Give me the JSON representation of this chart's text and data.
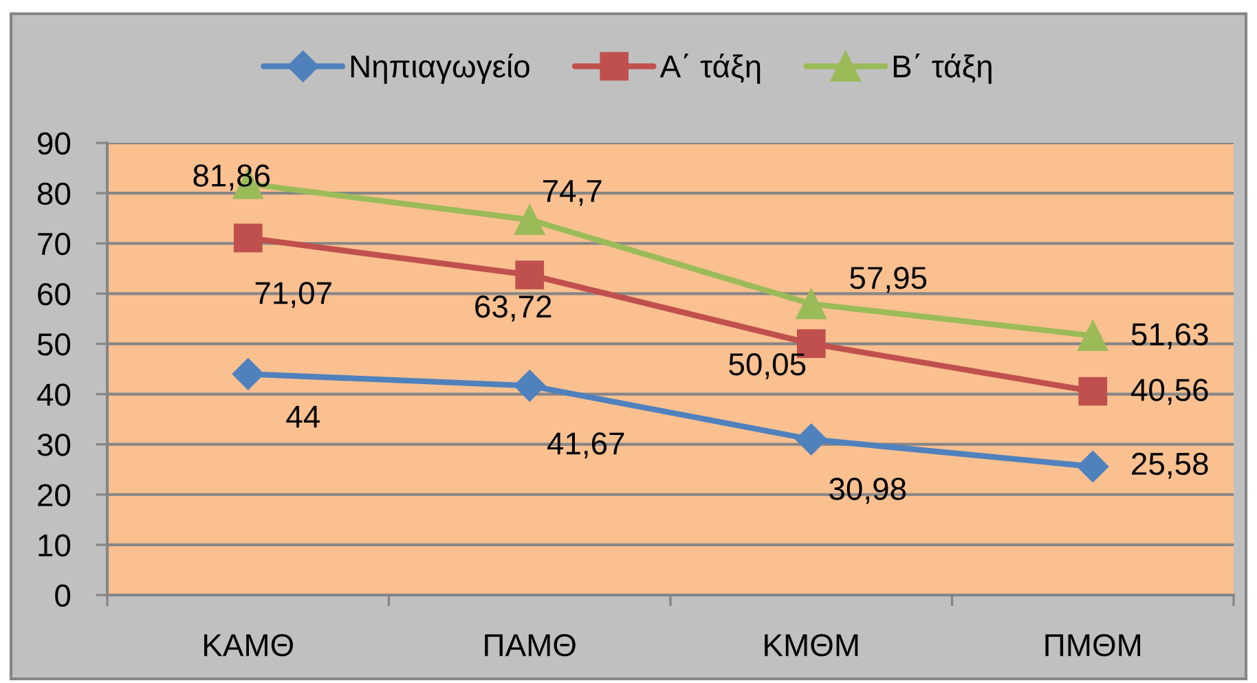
{
  "chart_data": {
    "type": "line",
    "categories": [
      "ΚΑΜΘ",
      "ΠΑΜΘ",
      "ΚΜΘΜ",
      "ΠΜΘΜ"
    ],
    "series": [
      {
        "name": "Νηπιαγωγείο",
        "color": "#4f81bd",
        "marker": "diamond",
        "values": [
          44,
          41.67,
          30.98,
          25.58
        ],
        "value_labels": [
          "44",
          "41,67",
          "30,98",
          "25,58"
        ]
      },
      {
        "name": "Α΄ τάξη",
        "color": "#c0504d",
        "marker": "square",
        "values": [
          71.07,
          63.72,
          50.05,
          40.56
        ],
        "value_labels": [
          "71,07",
          "63,72",
          "50,05",
          "40,56"
        ]
      },
      {
        "name": "Β΄ τάξη",
        "color": "#9bbb59",
        "marker": "triangle",
        "values": [
          81.86,
          74.7,
          57.95,
          51.63
        ],
        "value_labels": [
          "81,86",
          "74,7",
          "57,95",
          "51,63"
        ]
      }
    ],
    "ylim": [
      0,
      90
    ],
    "yticks": [
      0,
      10,
      20,
      30,
      40,
      50,
      60,
      70,
      80,
      90
    ],
    "grid": "y",
    "legend": "top",
    "line_style": "solid"
  }
}
